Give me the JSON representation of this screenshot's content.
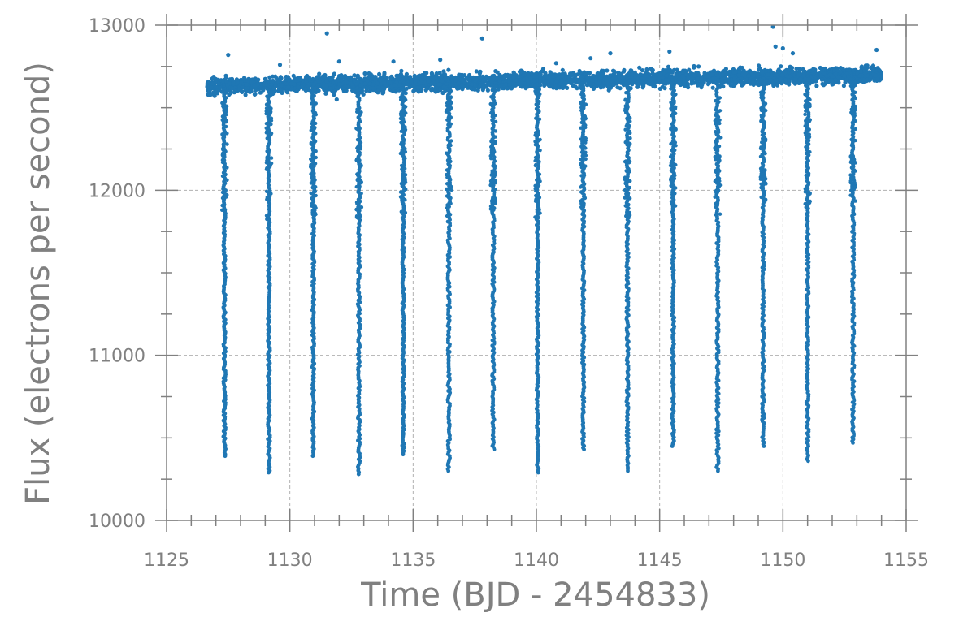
{
  "chart_data": {
    "type": "scatter",
    "title": "",
    "xlabel": "Time (BJD - 2454833)",
    "ylabel": "Flux (electrons per second)",
    "xlim": [
      1125,
      1155
    ],
    "ylim": [
      10000,
      13000
    ],
    "xticks": [
      1125,
      1130,
      1135,
      1140,
      1145,
      1150,
      1155
    ],
    "yticks": [
      10000,
      11000,
      12000,
      13000
    ],
    "x_minor_step": 1,
    "y_minor_step": 250,
    "grid": true,
    "legend": "none",
    "marker_color": "#1f77b4",
    "baseline": {
      "x_start": 1126.65,
      "x_end": 1154.0,
      "flux_start": 12630,
      "flux_end": 12700,
      "scatter": 45
    },
    "transits": [
      {
        "center": 1127.35,
        "min_flux": 10390
      },
      {
        "center": 1129.15,
        "min_flux": 10290
      },
      {
        "center": 1130.95,
        "min_flux": 10390
      },
      {
        "center": 1132.8,
        "min_flux": 10280
      },
      {
        "center": 1134.6,
        "min_flux": 10400
      },
      {
        "center": 1136.45,
        "min_flux": 10300
      },
      {
        "center": 1138.25,
        "min_flux": 10430
      },
      {
        "center": 1140.05,
        "min_flux": 10290
      },
      {
        "center": 1141.9,
        "min_flux": 10430
      },
      {
        "center": 1143.7,
        "min_flux": 10300
      },
      {
        "center": 1145.55,
        "min_flux": 10450
      },
      {
        "center": 1147.35,
        "min_flux": 10300
      },
      {
        "center": 1149.2,
        "min_flux": 10450
      },
      {
        "center": 1151.0,
        "min_flux": 10360
      },
      {
        "center": 1152.85,
        "min_flux": 10470
      }
    ],
    "outliers": [
      {
        "x": 1127.5,
        "y": 12820
      },
      {
        "x": 1131.5,
        "y": 12950
      },
      {
        "x": 1132.0,
        "y": 12780
      },
      {
        "x": 1131.9,
        "y": 12550
      },
      {
        "x": 1134.2,
        "y": 12780
      },
      {
        "x": 1136.1,
        "y": 12790
      },
      {
        "x": 1137.8,
        "y": 12920
      },
      {
        "x": 1142.2,
        "y": 12800
      },
      {
        "x": 1143.0,
        "y": 12830
      },
      {
        "x": 1145.4,
        "y": 12840
      },
      {
        "x": 1149.6,
        "y": 12990
      },
      {
        "x": 1149.7,
        "y": 12870
      },
      {
        "x": 1150.0,
        "y": 12860
      },
      {
        "x": 1150.4,
        "y": 12830
      },
      {
        "x": 1153.8,
        "y": 12850
      },
      {
        "x": 1129.6,
        "y": 12760
      },
      {
        "x": 1140.8,
        "y": 12770
      }
    ]
  }
}
